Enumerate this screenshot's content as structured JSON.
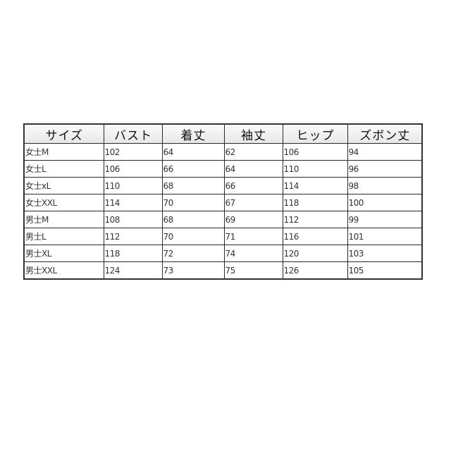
{
  "table": {
    "headers": [
      "サイズ",
      "バスト",
      "着丈",
      "袖丈",
      "ヒップ",
      "ズボン丈"
    ],
    "rows": [
      [
        "女士M",
        "102",
        "64",
        "62",
        "106",
        "94"
      ],
      [
        "女士L",
        "106",
        "66",
        "64",
        "110",
        "96"
      ],
      [
        "女士xL",
        "110",
        "68",
        "66",
        "114",
        "98"
      ],
      [
        "女士XXL",
        "114",
        "70",
        "67",
        "118",
        "100"
      ],
      [
        "男士M",
        "108",
        "68",
        "69",
        "112",
        "99"
      ],
      [
        "男士L",
        "112",
        "70",
        "71",
        "116",
        "101"
      ],
      [
        "男士XL",
        "118",
        "72",
        "74",
        "120",
        "103"
      ],
      [
        "男士XXL",
        "124",
        "73",
        "75",
        "126",
        "105"
      ]
    ]
  }
}
